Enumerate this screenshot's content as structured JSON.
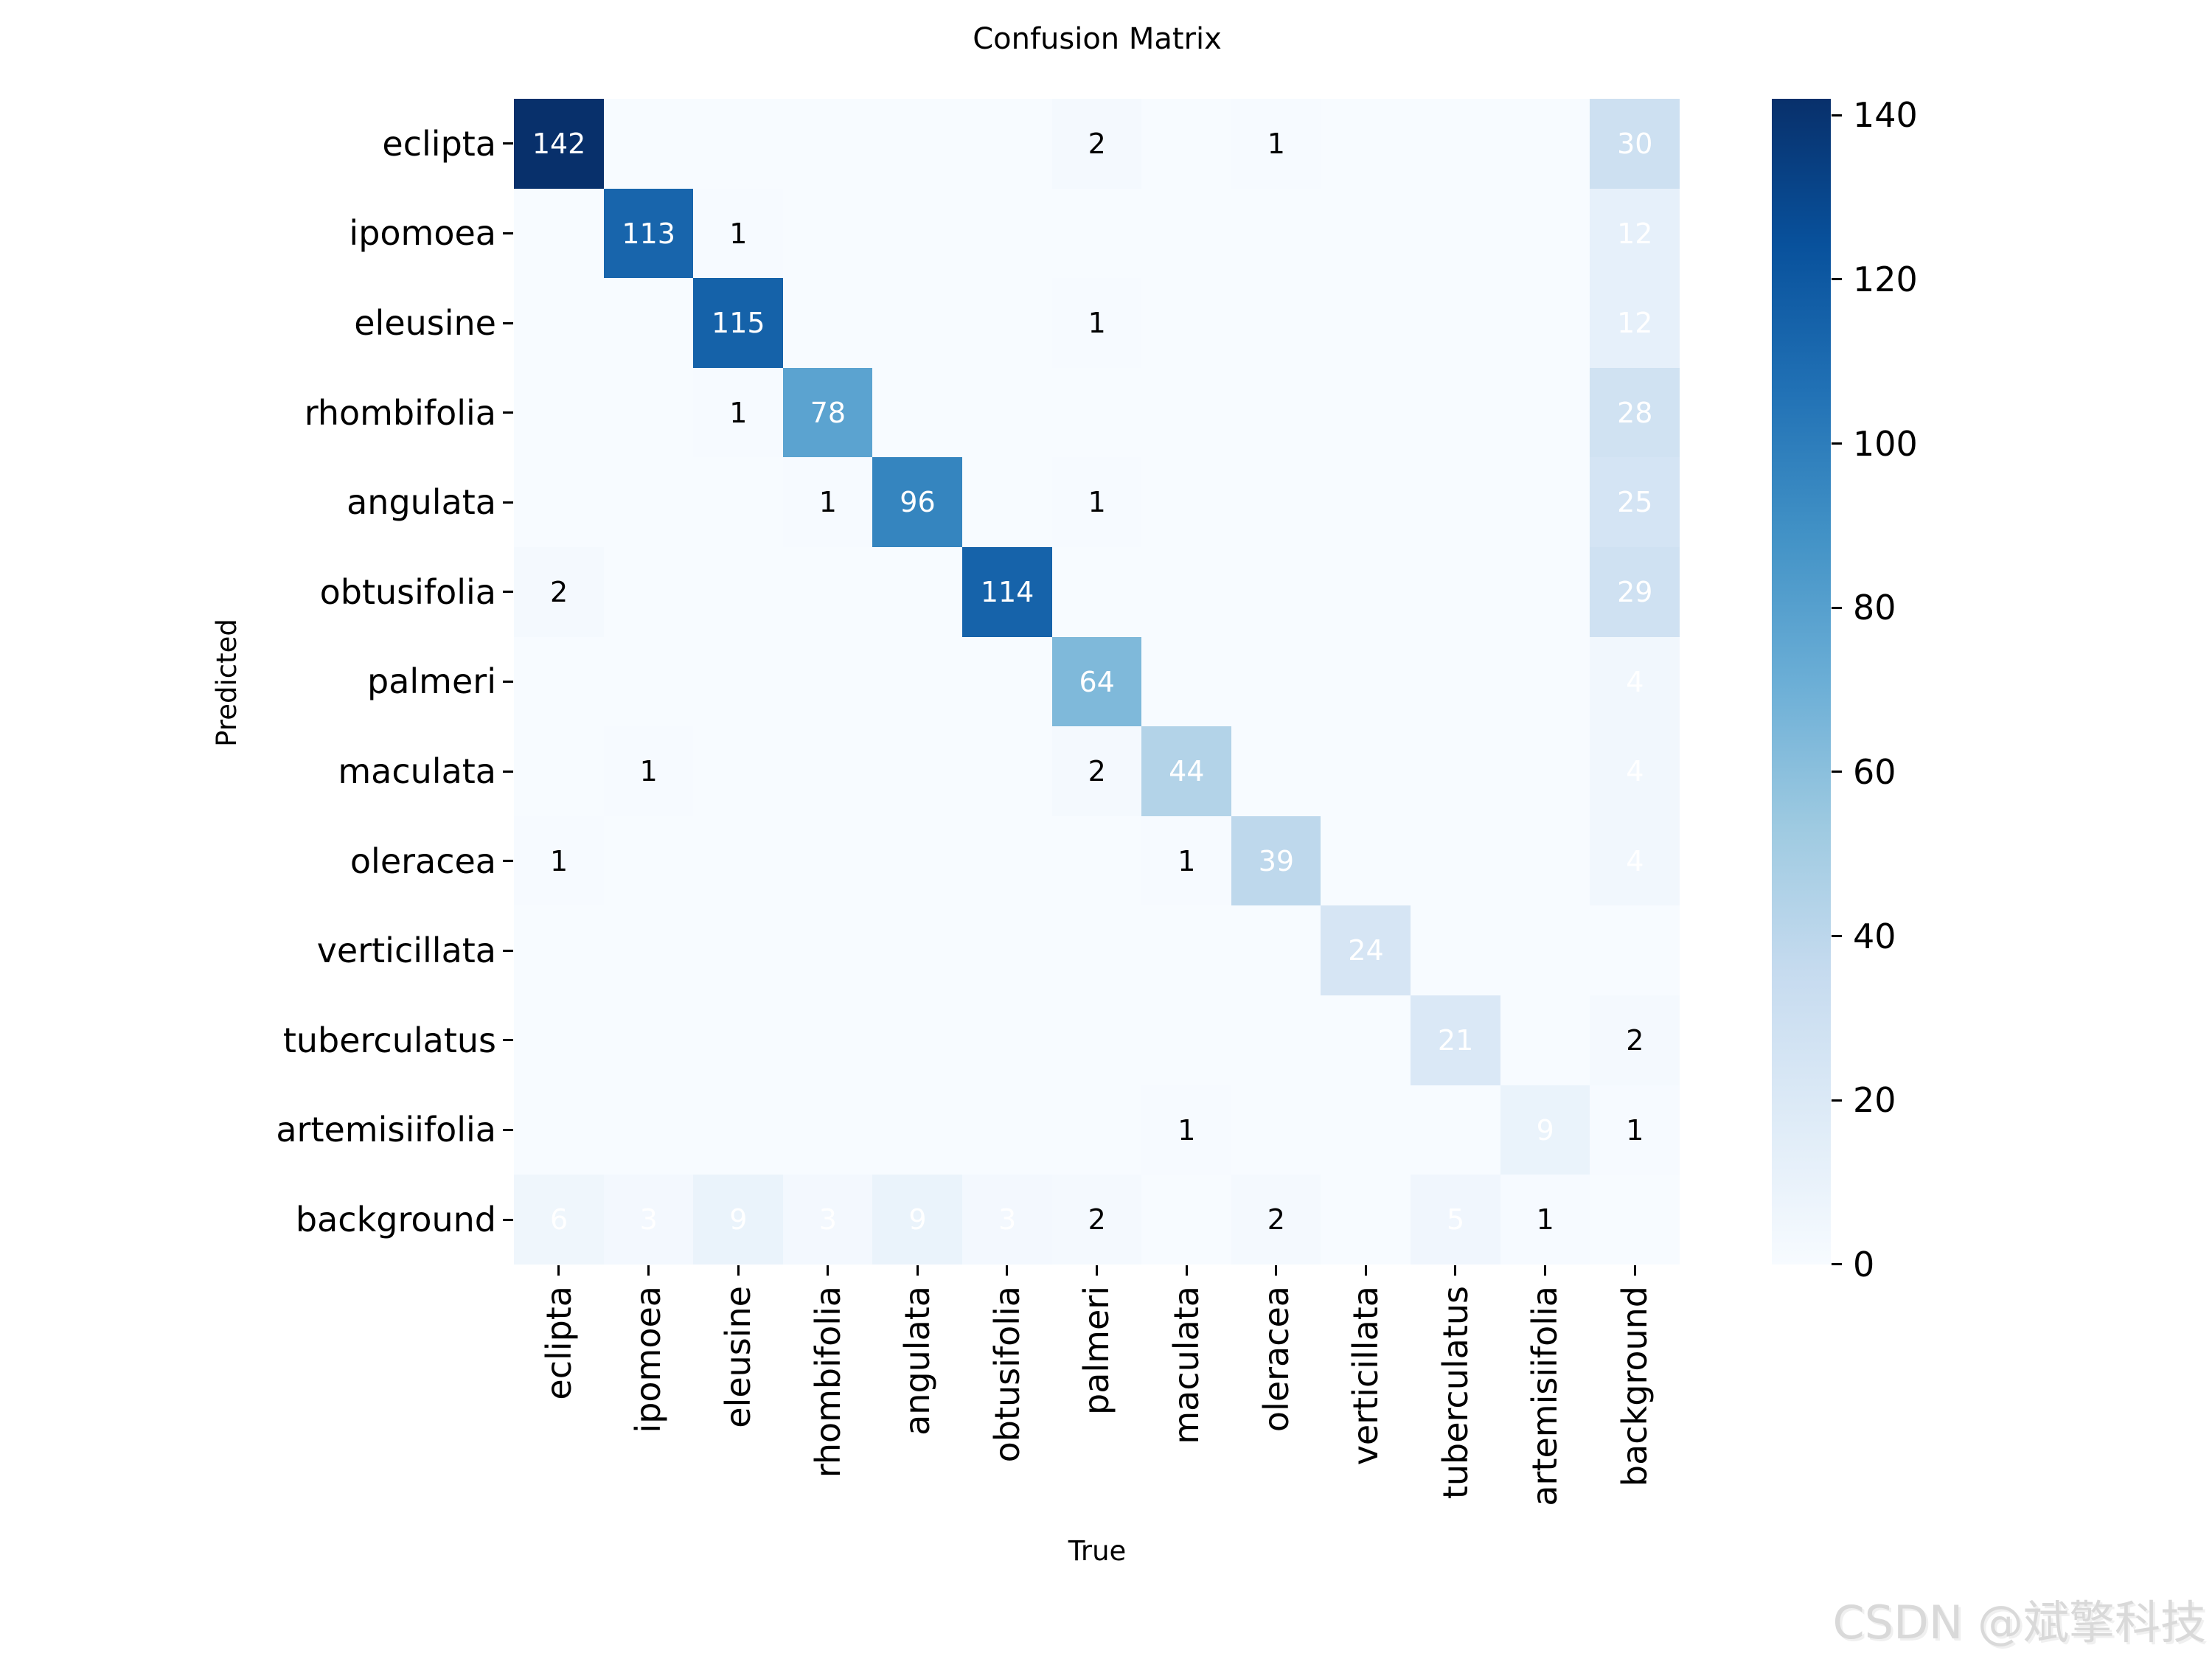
{
  "figure": {
    "title": "Confusion Matrix",
    "x_axis_label": "True",
    "y_axis_label": "Predicted",
    "watermark": "CSDN @斌擎科技"
  },
  "chart_data": {
    "type": "heatmap",
    "title": "Confusion Matrix",
    "xlabel": "True",
    "ylabel": "Predicted",
    "x_categories": [
      "eclipta",
      "ipomoea",
      "eleusine",
      "rhombifolia",
      "angulata",
      "obtusifolia",
      "palmeri",
      "maculata",
      "oleracea",
      "verticillata",
      "tuberculatus",
      "artemisiifolia",
      "background"
    ],
    "y_categories": [
      "eclipta",
      "ipomoea",
      "eleusine",
      "rhombifolia",
      "angulata",
      "obtusifolia",
      "palmeri",
      "maculata",
      "oleracea",
      "verticillata",
      "tuberculatus",
      "artemisiifolia",
      "background"
    ],
    "matrix": [
      [
        142,
        0,
        0,
        0,
        0,
        0,
        2,
        0,
        1,
        0,
        0,
        0,
        30
      ],
      [
        0,
        113,
        1,
        0,
        0,
        0,
        0,
        0,
        0,
        0,
        0,
        0,
        12
      ],
      [
        0,
        0,
        115,
        0,
        0,
        0,
        1,
        0,
        0,
        0,
        0,
        0,
        12
      ],
      [
        0,
        0,
        1,
        78,
        0,
        0,
        0,
        0,
        0,
        0,
        0,
        0,
        28
      ],
      [
        0,
        0,
        0,
        1,
        96,
        0,
        1,
        0,
        0,
        0,
        0,
        0,
        25
      ],
      [
        2,
        0,
        0,
        0,
        0,
        114,
        0,
        0,
        0,
        0,
        0,
        0,
        29
      ],
      [
        0,
        0,
        0,
        0,
        0,
        0,
        64,
        0,
        0,
        0,
        0,
        0,
        4
      ],
      [
        0,
        1,
        0,
        0,
        0,
        0,
        2,
        44,
        0,
        0,
        0,
        0,
        4
      ],
      [
        1,
        0,
        0,
        0,
        0,
        0,
        0,
        1,
        39,
        0,
        0,
        0,
        4
      ],
      [
        0,
        0,
        0,
        0,
        0,
        0,
        0,
        0,
        0,
        24,
        0,
        0,
        0
      ],
      [
        0,
        0,
        0,
        0,
        0,
        0,
        0,
        0,
        0,
        0,
        21,
        0,
        2
      ],
      [
        0,
        0,
        0,
        0,
        0,
        0,
        0,
        1,
        0,
        0,
        0,
        9,
        1
      ],
      [
        6,
        3,
        9,
        3,
        9,
        3,
        2,
        0,
        2,
        0,
        5,
        1,
        0
      ]
    ],
    "vmin": 0,
    "vmax": 142,
    "colormap": "Blues",
    "colormap_stops": [
      "#f7fbff",
      "#deebf7",
      "#c6dbef",
      "#9ecae1",
      "#6baed6",
      "#4292c6",
      "#2171b5",
      "#08519c",
      "#08306b"
    ],
    "colorbar_ticks": [
      0,
      20,
      40,
      60,
      80,
      100,
      120,
      140
    ],
    "colorbar_position": "right",
    "grid": false,
    "annot_hide_zero": true,
    "annot_white_min_value": 3,
    "annot_text_colors": {
      "light": "#ffffff",
      "dark": "#000000"
    }
  }
}
